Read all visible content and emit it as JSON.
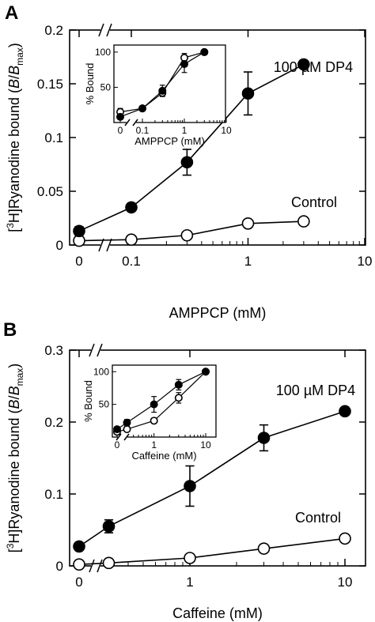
{
  "chart_data": [
    {
      "type": "scatter",
      "panel": "A",
      "title": "",
      "xlabel": "AMPPCP (mM)",
      "ylabel_parts": [
        "[",
        "3",
        "H]Ryanodine bound (",
        "B",
        "/",
        "B",
        "max",
        ")"
      ],
      "x_scale": "log with zero break",
      "x_tick_labels": [
        "0",
        "0.1",
        "1",
        "10"
      ],
      "y_tick_labels": [
        "0",
        "0.05",
        "0.1",
        "0.15",
        "0.2"
      ],
      "ylim": [
        0,
        0.2
      ],
      "annotations": [
        "100 µM DP4",
        "Control"
      ],
      "series": [
        {
          "name": "100 µM DP4",
          "marker": "filled-circle",
          "x": [
            0,
            0.1,
            0.3,
            1,
            3
          ],
          "y": [
            0.013,
            0.035,
            0.077,
            0.141,
            0.168
          ],
          "err": [
            0.004,
            0.003,
            0.012,
            0.02,
            0.003
          ]
        },
        {
          "name": "Control",
          "marker": "open-circle",
          "x": [
            0,
            0.1,
            0.3,
            1,
            3
          ],
          "y": [
            0.004,
            0.005,
            0.009,
            0.02,
            0.022
          ],
          "err": [
            0,
            0,
            0,
            0,
            0
          ]
        }
      ],
      "inset": {
        "xlabel": "AMPPCP (mM)",
        "ylabel": "% Bound",
        "x_tick_labels": [
          "0",
          "0.1",
          "1",
          "10"
        ],
        "y_tick_labels": [
          "50",
          "100"
        ],
        "ylim": [
          0,
          110
        ],
        "series": [
          {
            "marker": "filled-circle",
            "x": [
              0,
              0.1,
              0.3,
              1,
              3
            ],
            "y": [
              8,
              20,
              45,
              83,
              100
            ],
            "err": [
              3,
              2,
              8,
              12,
              2
            ]
          },
          {
            "marker": "open-circle",
            "x": [
              0,
              0.1,
              0.3,
              1,
              3
            ],
            "y": [
              15,
              20,
              42,
              92,
              100
            ],
            "err": [
              5,
              2,
              5,
              6,
              2
            ]
          }
        ]
      }
    },
    {
      "type": "scatter",
      "panel": "B",
      "title": "",
      "xlabel": "Caffeine (mM)",
      "ylabel_parts": [
        "[",
        "3",
        "H]Ryanodine bound (",
        "B",
        "/",
        "B",
        "max",
        ")"
      ],
      "x_scale": "log with zero break",
      "x_tick_labels": [
        "0",
        "1",
        "10"
      ],
      "y_tick_labels": [
        "0",
        "0.1",
        "0.2",
        "0.3"
      ],
      "ylim": [
        0,
        0.3
      ],
      "annotations": [
        "100 µM DP4",
        "Control"
      ],
      "series": [
        {
          "name": "100 µM DP4",
          "marker": "filled-circle",
          "x": [
            0,
            0.3,
            1,
            3,
            10
          ],
          "y": [
            0.027,
            0.055,
            0.111,
            0.178,
            0.215
          ],
          "err": [
            0.003,
            0.009,
            0.028,
            0.018,
            0.003
          ]
        },
        {
          "name": "Control",
          "marker": "open-circle",
          "x": [
            0,
            0.3,
            1,
            3,
            10
          ],
          "y": [
            0.002,
            0.004,
            0.011,
            0.024,
            0.038
          ],
          "err": [
            0,
            0,
            0,
            0,
            0
          ]
        }
      ],
      "inset": {
        "xlabel": "Caffeine (mM)",
        "ylabel": "% Bound",
        "x_tick_labels": [
          "0",
          "1",
          "10"
        ],
        "y_tick_labels": [
          "50",
          "100"
        ],
        "ylim": [
          0,
          110
        ],
        "series": [
          {
            "marker": "filled-circle",
            "x": [
              0,
              0.3,
              1,
              3,
              10
            ],
            "y": [
              12,
              22,
              50,
              80,
              100
            ],
            "err": [
              3,
              5,
              12,
              8,
              2
            ]
          },
          {
            "marker": "open-circle",
            "x": [
              0,
              0.3,
              1,
              3,
              10
            ],
            "y": [
              8,
              12,
              25,
              60,
              100
            ],
            "err": [
              2,
              2,
              4,
              8,
              2
            ]
          }
        ]
      }
    }
  ]
}
